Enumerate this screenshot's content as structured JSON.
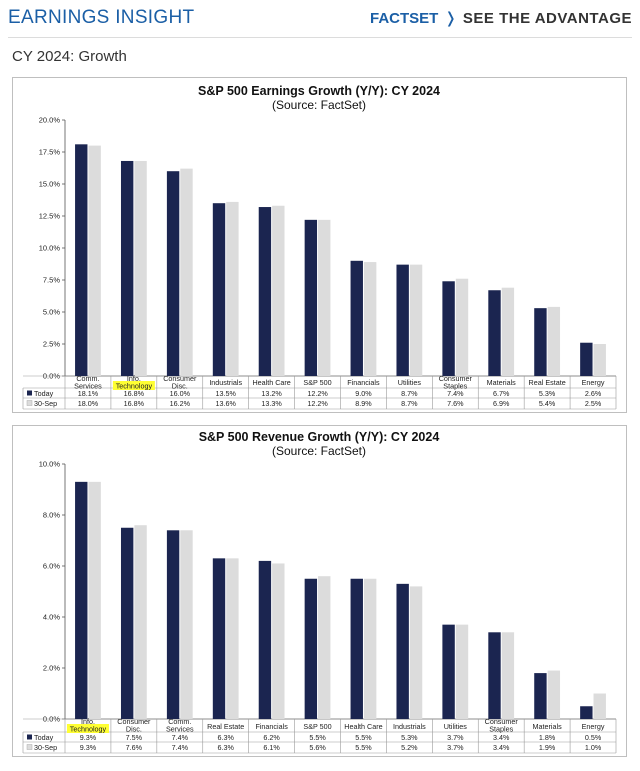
{
  "header": {
    "title": "EARNINGS INSIGHT",
    "brand": "FACTSET",
    "tagline": "SEE THE ADVANTAGE"
  },
  "section_title": "CY 2024: Growth",
  "colors": {
    "today": "#1b2550",
    "sep30": "#dcdcdc",
    "highlight": "#ffff33",
    "brand": "#1b5fa6"
  },
  "chart_data": [
    {
      "type": "bar",
      "title": "S&P 500 Earnings Growth (Y/Y): CY 2024",
      "subtitle": "(Source: FactSet)",
      "categories": [
        "Comm. Services",
        "Info. Technology",
        "Consumer Disc.",
        "Industrials",
        "Health Care",
        "S&P 500",
        "Financials",
        "Utilities",
        "Consumer Staples",
        "Materials",
        "Real Estate",
        "Energy"
      ],
      "category_lines": [
        [
          "Comm.",
          "Services"
        ],
        [
          "Info.",
          "Technology"
        ],
        [
          "Consumer",
          "Disc."
        ],
        [
          "Industrials"
        ],
        [
          "Health Care"
        ],
        [
          "S&P 500"
        ],
        [
          "Financials"
        ],
        [
          "Utilities"
        ],
        [
          "Consumer",
          "Staples"
        ],
        [
          "Materials"
        ],
        [
          "Real Estate"
        ],
        [
          "Energy"
        ]
      ],
      "highlight_category": 1,
      "series": [
        {
          "name": "Today",
          "values": [
            18.1,
            16.8,
            16.0,
            13.5,
            13.2,
            12.2,
            9.0,
            8.7,
            7.4,
            6.7,
            5.3,
            2.6
          ],
          "labels": [
            "18.1%",
            "16.8%",
            "16.0%",
            "13.5%",
            "13.2%",
            "12.2%",
            "9.0%",
            "8.7%",
            "7.4%",
            "6.7%",
            "5.3%",
            "2.6%"
          ]
        },
        {
          "name": "30-Sep",
          "values": [
            18.0,
            16.8,
            16.2,
            13.6,
            13.3,
            12.2,
            8.9,
            8.7,
            7.6,
            6.9,
            5.4,
            2.5
          ],
          "labels": [
            "18.0%",
            "16.8%",
            "16.2%",
            "13.6%",
            "13.3%",
            "12.2%",
            "8.9%",
            "8.7%",
            "7.6%",
            "6.9%",
            "5.4%",
            "2.5%"
          ]
        }
      ],
      "ylim": [
        0,
        20
      ],
      "yticks": [
        "0.0%",
        "2.5%",
        "5.0%",
        "7.5%",
        "10.0%",
        "12.5%",
        "15.0%",
        "17.5%",
        "20.0%"
      ],
      "ytick_values": [
        0,
        2.5,
        5,
        7.5,
        10,
        12.5,
        15,
        17.5,
        20
      ],
      "grid": false,
      "legend": "data-table"
    },
    {
      "type": "bar",
      "title": "S&P 500 Revenue Growth (Y/Y): CY 2024",
      "subtitle": "(Source: FactSet)",
      "categories": [
        "Info. Technology",
        "Consumer Disc.",
        "Comm. Services",
        "Real Estate",
        "Financials",
        "S&P 500",
        "Health Care",
        "Industrials",
        "Utilities",
        "Consumer Staples",
        "Materials",
        "Energy"
      ],
      "category_lines": [
        [
          "Info.",
          "Technology"
        ],
        [
          "Consumer",
          "Disc."
        ],
        [
          "Comm.",
          "Services"
        ],
        [
          "Real Estate"
        ],
        [
          "Financials"
        ],
        [
          "S&P 500"
        ],
        [
          "Health Care"
        ],
        [
          "Industrials"
        ],
        [
          "Utilities"
        ],
        [
          "Consumer",
          "Staples"
        ],
        [
          "Materials"
        ],
        [
          "Energy"
        ]
      ],
      "highlight_category": 0,
      "series": [
        {
          "name": "Today",
          "values": [
            9.3,
            7.5,
            7.4,
            6.3,
            6.2,
            5.5,
            5.5,
            5.3,
            3.7,
            3.4,
            1.8,
            0.5
          ],
          "labels": [
            "9.3%",
            "7.5%",
            "7.4%",
            "6.3%",
            "6.2%",
            "5.5%",
            "5.5%",
            "5.3%",
            "3.7%",
            "3.4%",
            "1.8%",
            "0.5%"
          ]
        },
        {
          "name": "30-Sep",
          "values": [
            9.3,
            7.6,
            7.4,
            6.3,
            6.1,
            5.6,
            5.5,
            5.2,
            3.7,
            3.4,
            1.9,
            1.0
          ],
          "labels": [
            "9.3%",
            "7.6%",
            "7.4%",
            "6.3%",
            "6.1%",
            "5.6%",
            "5.5%",
            "5.2%",
            "3.7%",
            "3.4%",
            "1.9%",
            "1.0%"
          ]
        }
      ],
      "ylim": [
        0,
        10
      ],
      "yticks": [
        "0.0%",
        "2.0%",
        "4.0%",
        "6.0%",
        "8.0%",
        "10.0%"
      ],
      "ytick_values": [
        0,
        2,
        4,
        6,
        8,
        10
      ],
      "grid": false,
      "legend": "data-table"
    }
  ]
}
